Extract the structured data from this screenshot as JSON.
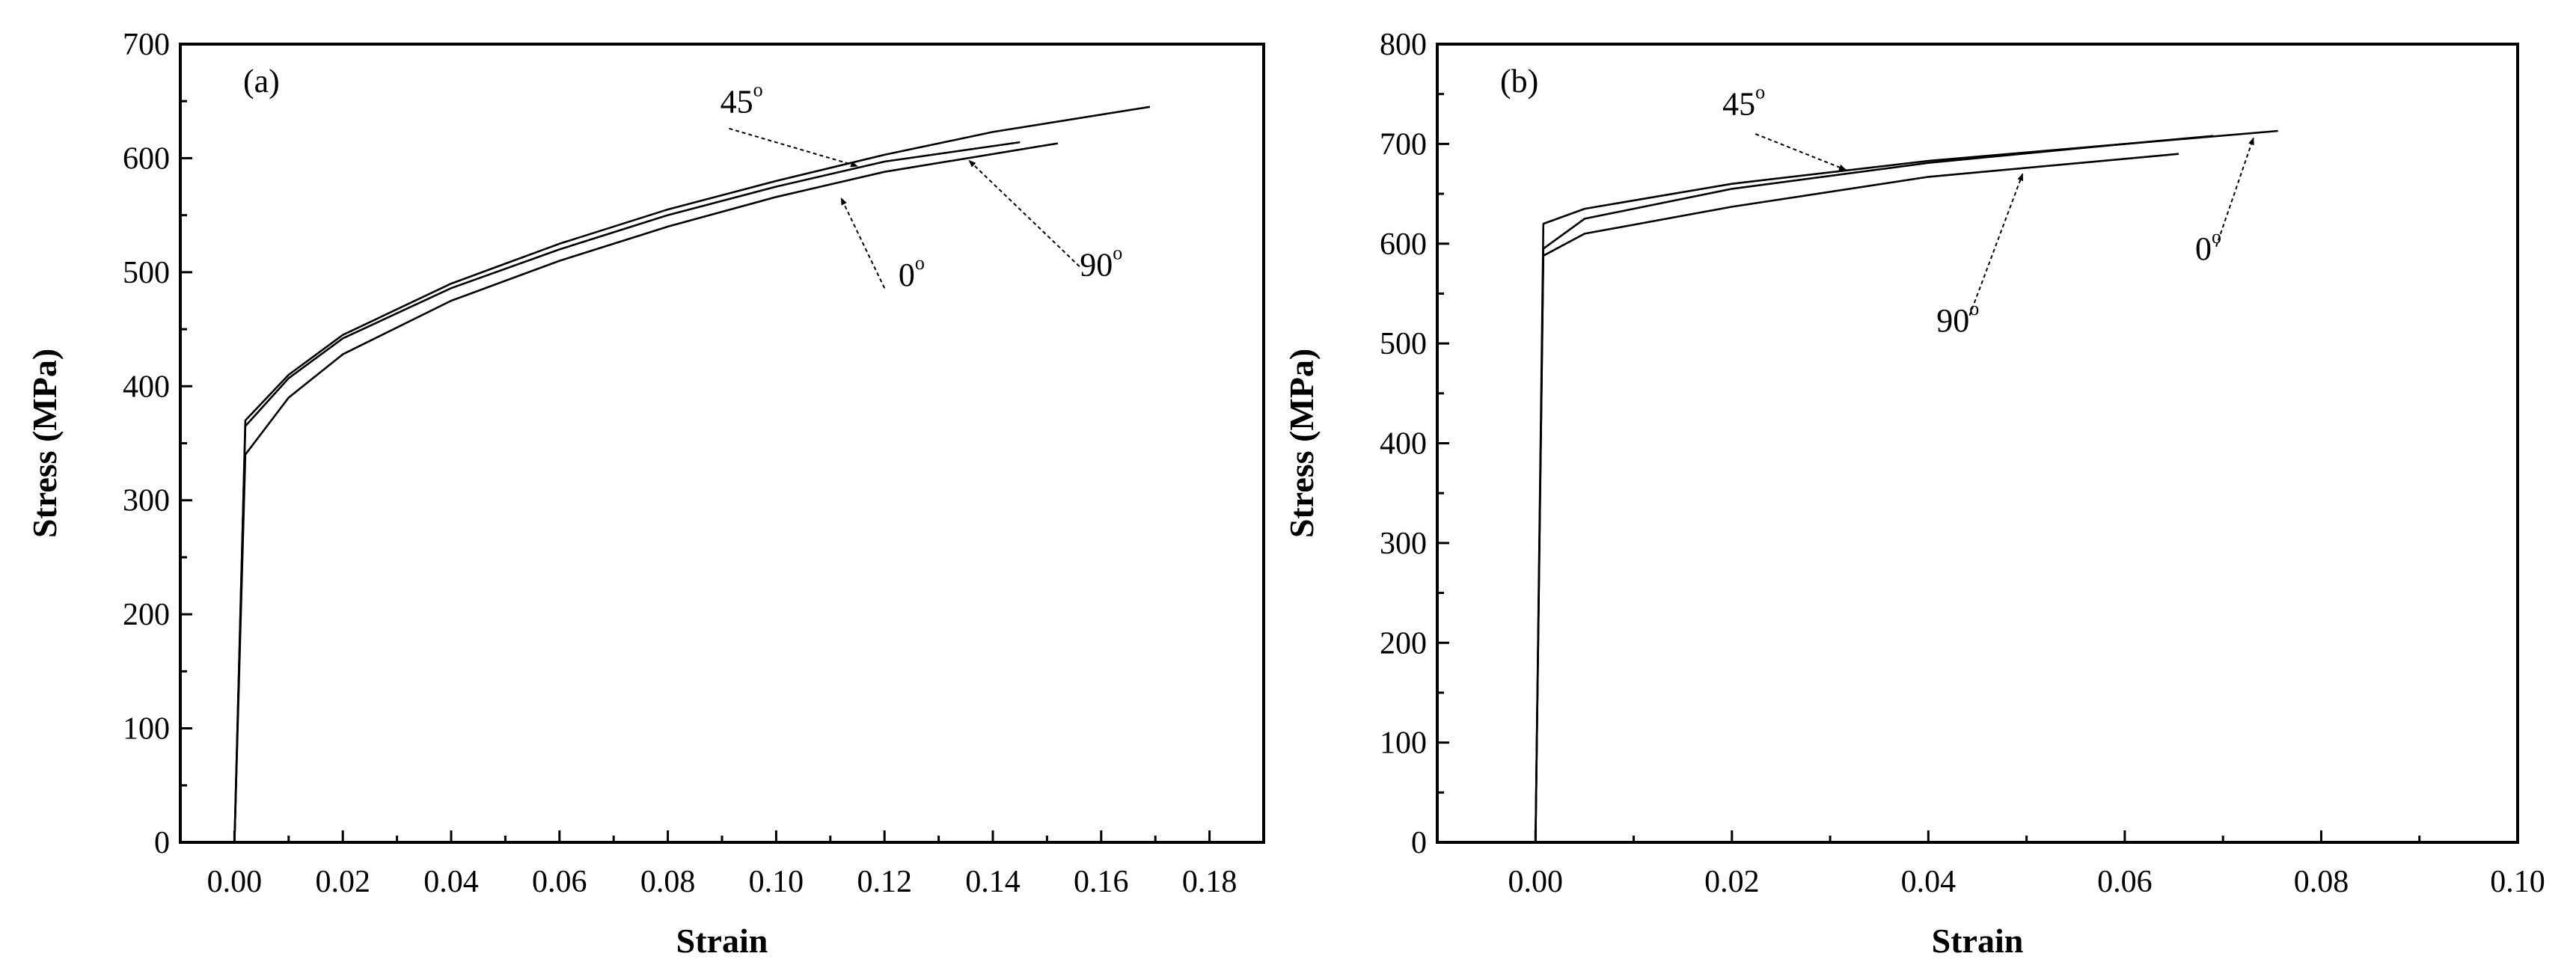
{
  "chart_data": [
    {
      "type": "line",
      "panel_label": "(a)",
      "xlabel": "Strain",
      "ylabel": "Stress (MPa)",
      "xlim": [
        -0.01,
        0.19
      ],
      "ylim": [
        0,
        700
      ],
      "xticks": [
        "0.00",
        "0.02",
        "0.04",
        "0.06",
        "0.08",
        "0.10",
        "0.12",
        "0.14",
        "0.16",
        "0.18"
      ],
      "yticks": [
        "0",
        "100",
        "200",
        "300",
        "400",
        "500",
        "600",
        "700"
      ],
      "grid": false,
      "series": [
        {
          "name": "45°",
          "x": [
            0,
            0.002,
            0.01,
            0.02,
            0.04,
            0.06,
            0.08,
            0.1,
            0.12,
            0.14,
            0.169
          ],
          "y": [
            0,
            370,
            410,
            445,
            490,
            525,
            555,
            580,
            603,
            623,
            645
          ]
        },
        {
          "name": "90°",
          "x": [
            0,
            0.002,
            0.01,
            0.02,
            0.04,
            0.06,
            0.08,
            0.1,
            0.12,
            0.145
          ],
          "y": [
            0,
            365,
            407,
            442,
            486,
            520,
            550,
            575,
            597,
            614
          ]
        },
        {
          "name": "0°",
          "x": [
            0,
            0.002,
            0.01,
            0.02,
            0.04,
            0.06,
            0.08,
            0.1,
            0.12,
            0.152
          ],
          "y": [
            0,
            340,
            390,
            428,
            475,
            510,
            540,
            566,
            588,
            613
          ]
        }
      ],
      "annotations": [
        {
          "text": "45",
          "sup": "o"
        },
        {
          "text": "0",
          "sup": "o"
        },
        {
          "text": "90",
          "sup": "o"
        }
      ]
    },
    {
      "type": "line",
      "panel_label": "(b)",
      "xlabel": "Strain",
      "ylabel": "Stress (MPa)",
      "xlim": [
        -0.01,
        0.1
      ],
      "ylim": [
        0,
        800
      ],
      "xticks": [
        "0.00",
        "0.02",
        "0.04",
        "0.06",
        "0.08",
        "0.10"
      ],
      "yticks": [
        "0",
        "100",
        "200",
        "300",
        "400",
        "500",
        "600",
        "700",
        "800"
      ],
      "grid": false,
      "series": [
        {
          "name": "45°",
          "x": [
            0,
            0.0008,
            0.005,
            0.02,
            0.04,
            0.06,
            0.069
          ],
          "y": [
            0,
            620,
            635,
            660,
            683,
            700,
            708
          ]
        },
        {
          "name": "0°",
          "x": [
            0,
            0.0008,
            0.005,
            0.02,
            0.04,
            0.06,
            0.0756
          ],
          "y": [
            0,
            595,
            625,
            655,
            681,
            700,
            713
          ]
        },
        {
          "name": "90°",
          "x": [
            0,
            0.0008,
            0.005,
            0.02,
            0.04,
            0.0655
          ],
          "y": [
            0,
            588,
            610,
            637,
            667,
            690
          ]
        }
      ],
      "annotations": [
        {
          "text": "45",
          "sup": "o"
        },
        {
          "text": "90",
          "sup": "o"
        },
        {
          "text": "0",
          "sup": "o"
        }
      ]
    }
  ]
}
